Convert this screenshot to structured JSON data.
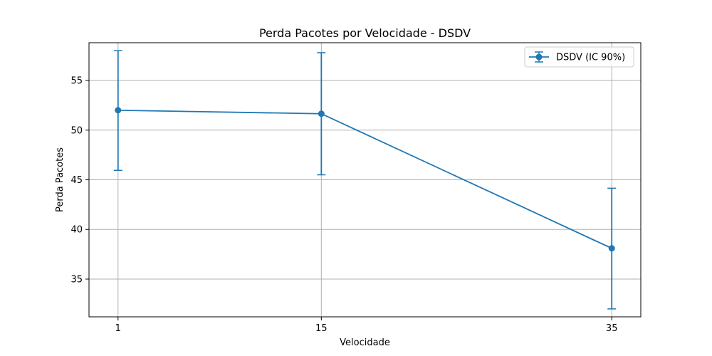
{
  "chart_data": {
    "type": "line",
    "title": "Perda Pacotes por Velocidade - DSDV",
    "xlabel": "Velocidade",
    "ylabel": "Perda Pacotes",
    "x": [
      1,
      15,
      35
    ],
    "x_tick_labels": [
      "1",
      "15",
      "35"
    ],
    "y_ticks": [
      35,
      40,
      45,
      50,
      55
    ],
    "y_tick_labels": [
      "35",
      "40",
      "45",
      "50",
      "55"
    ],
    "xlim": [
      -1,
      37
    ],
    "ylim": [
      31.2,
      58.8
    ],
    "grid": true,
    "legend_position": "top-right",
    "series": [
      {
        "name": "DSDV (IC 90%)",
        "color": "#1f77b4",
        "marker": "circle",
        "values": [
          52.0,
          51.65,
          38.1
        ],
        "error_lower": [
          45.95,
          45.5,
          32.0
        ],
        "error_upper": [
          58.0,
          57.8,
          44.15
        ]
      }
    ]
  }
}
